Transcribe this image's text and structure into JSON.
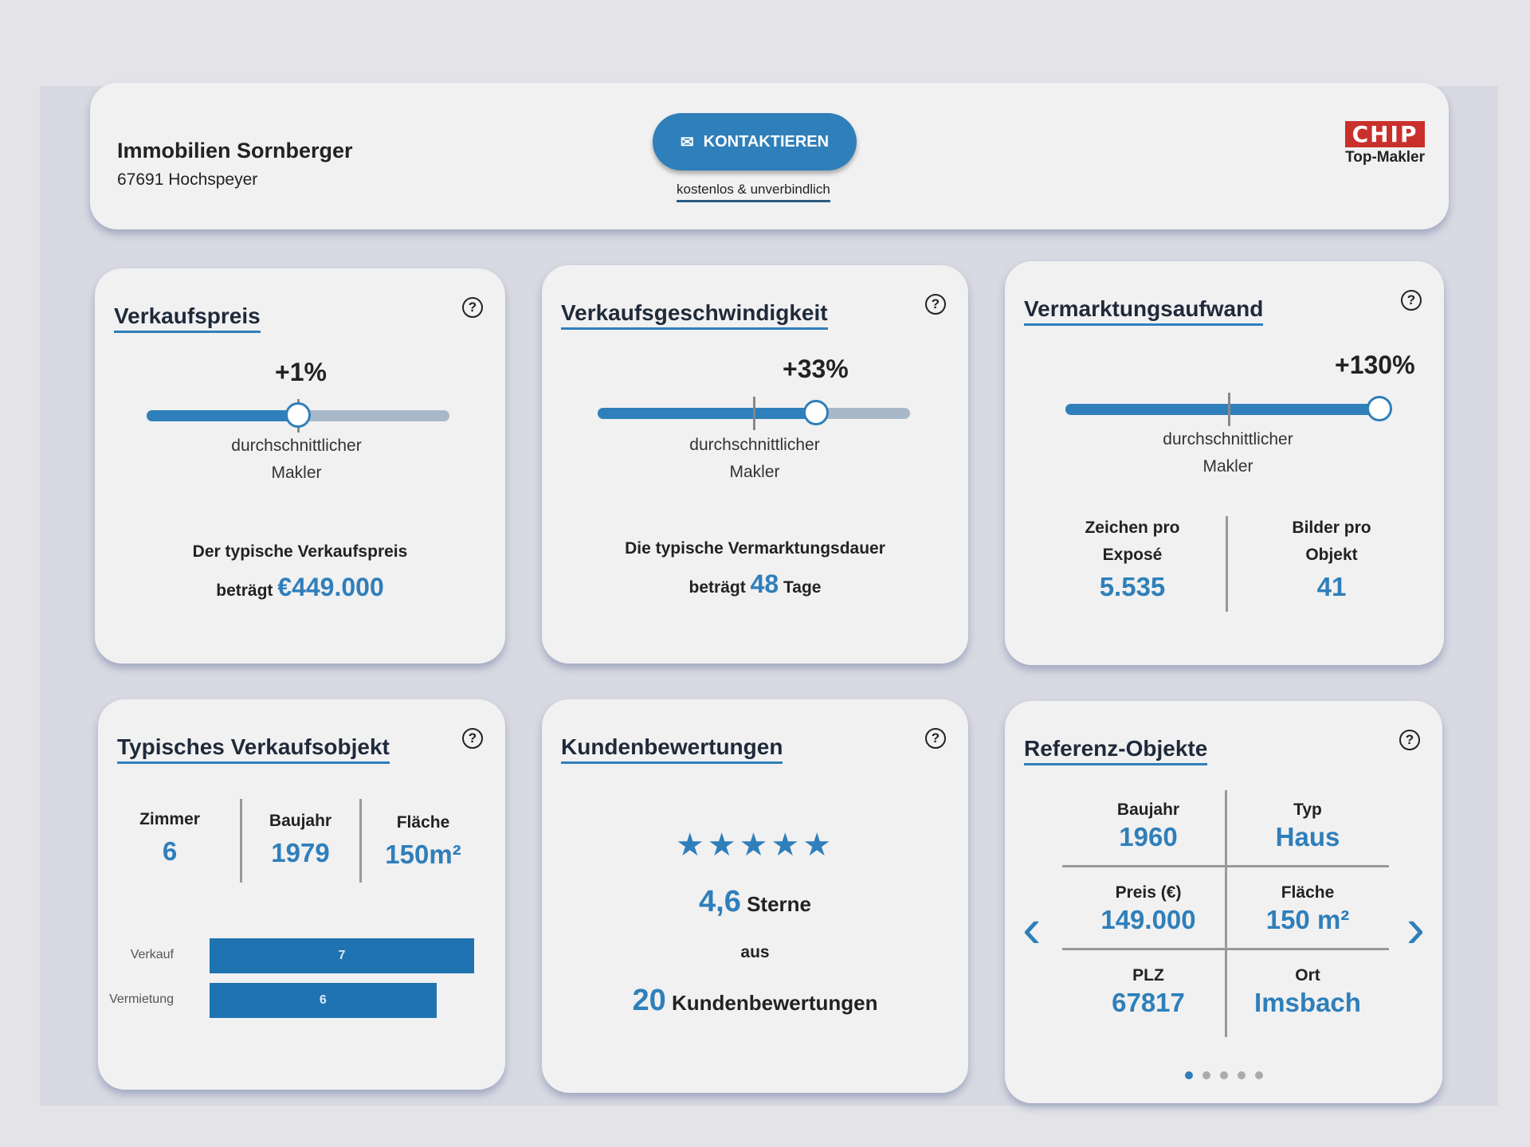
{
  "header": {
    "company": "Immobilien Sornberger",
    "address": "67691 Hochspeyer",
    "contact_label": "KONTAKTIEREN",
    "contact_sub": "kostenlos & unverbindlich",
    "logo_text": "CHIP",
    "logo_sub": "Top-Makler"
  },
  "avg_label": [
    "durchschnittlicher",
    "Makler"
  ],
  "price": {
    "title": "Verkaufspreis",
    "percent": "+1%",
    "slider_fraction": 0.5,
    "text1": "Der typische Verkaufspreis",
    "text2": "beträgt",
    "value": "€449.000"
  },
  "speed": {
    "title": "Verkaufsgeschwindigkeit",
    "percent": "+33%",
    "slider_fraction": 0.7,
    "text1": "Die typische Vermarktungsdauer",
    "text2": "beträgt",
    "value": "48",
    "unit": "Tage"
  },
  "effort": {
    "title": "Vermarktungsaufwand",
    "percent": "+130%",
    "slider_fraction": 0.96,
    "stat1_label1": "Zeichen pro",
    "stat1_label2": "Exposé",
    "stat1_value": "5.535",
    "stat2_label1": "Bilder pro",
    "stat2_label2": "Objekt",
    "stat2_value": "41"
  },
  "typical": {
    "title": "Typisches Verkaufsobjekt",
    "rooms_label": "Zimmer",
    "rooms": "6",
    "year_label": "Baujahr",
    "year": "1979",
    "area_label": "Fläche",
    "area": "150m²"
  },
  "chart_data": {
    "type": "bar",
    "orientation": "horizontal",
    "categories": [
      "Verkauf",
      "Vermietung"
    ],
    "values": [
      7,
      6
    ],
    "xlim": [
      0,
      7
    ]
  },
  "reviews": {
    "title": "Kundenbewertungen",
    "rating": 4.6,
    "rating_text": "4,6",
    "stars_label": "Sterne",
    "from": "aus",
    "count": "20",
    "count_label": "Kundenbewertungen"
  },
  "reference": {
    "title": "Referenz-Objekte",
    "year_label": "Baujahr",
    "year": "1960",
    "type_label": "Typ",
    "type": "Haus",
    "price_label": "Preis (€)",
    "price": "149.000",
    "area_label": "Fläche",
    "area": "150 m²",
    "zip_label": "PLZ",
    "zip": "67817",
    "city_label": "Ort",
    "city": "Imsbach",
    "page": 1,
    "pages": 5
  },
  "colors": {
    "accent": "#2f7fba",
    "logo": "#c9302c"
  }
}
